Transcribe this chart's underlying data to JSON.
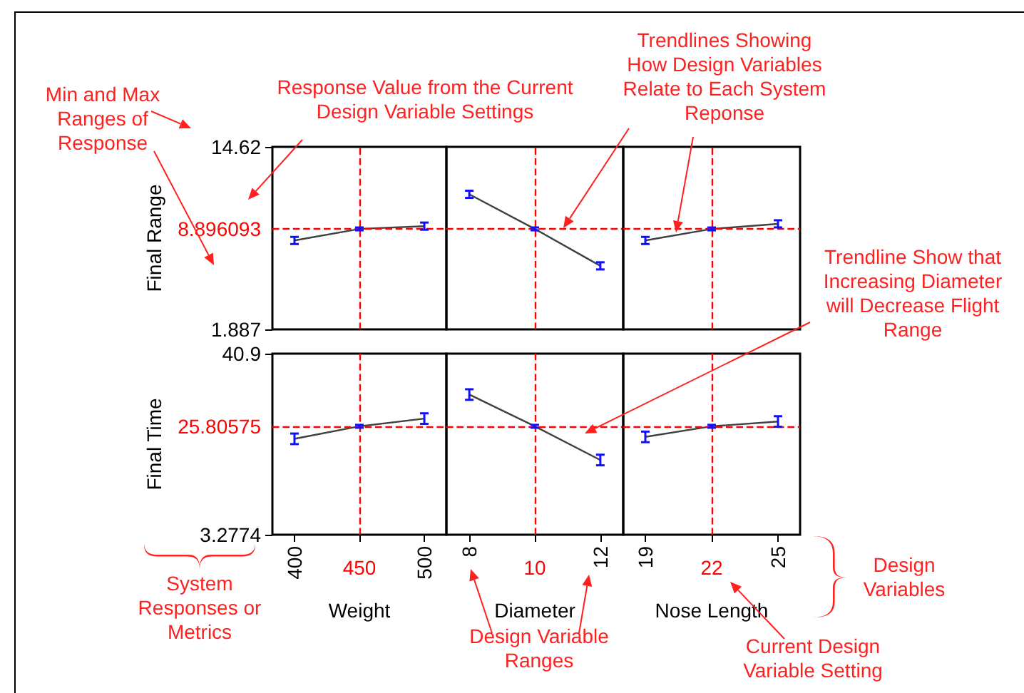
{
  "chart_data": [
    {
      "type": "line",
      "ylabel": "Final Range",
      "x": [
        400,
        450,
        500
      ],
      "values": [
        8.09,
        8.896093,
        9.09
      ],
      "errors": [
        0.25,
        0.1,
        0.25
      ],
      "color": "#404040",
      "marker": "none",
      "xlim": [
        383,
        517
      ],
      "xticks": [
        400,
        {
          "value": 450,
          "label": null
        },
        500
      ],
      "ylim": [
        1.887,
        14.62
      ],
      "yticks": [
        14.62,
        1.887
      ],
      "tick_labels": "y",
      "ref_lines": [
        {
          "axis": "x",
          "value": 450,
          "label": null,
          "color": "#ff0000",
          "line_style": "dashed"
        },
        {
          "axis": "y",
          "value": 8.896093,
          "label": "8.896093",
          "color": "#ff0000",
          "line_style": "dashed"
        }
      ],
      "annotations": [
        "Min and Max\nRanges of\nResponse",
        "Response Value from the Current\nDesign Variable Settings",
        "System\nResponses or\nMetrics"
      ]
    },
    {
      "type": "line",
      "x": [
        8,
        10,
        12
      ],
      "values": [
        11.31,
        8.896093,
        6.32
      ],
      "errors": [
        0.25,
        0.1,
        0.25
      ],
      "color": "#404040",
      "marker": "none",
      "xlim": [
        7.3,
        12.7
      ],
      "xticks": [
        8,
        {
          "value": 10,
          "label": null
        },
        12
      ],
      "ylim": [
        1.887,
        14.62
      ],
      "yticks": [
        14.62,
        1.887
      ],
      "tick_labels": false,
      "ref_lines": [
        {
          "axis": "x",
          "value": 10,
          "label": null,
          "color": "#ff0000",
          "line_style": "dashed"
        },
        {
          "axis": "y",
          "value": 8.896093,
          "label": null,
          "color": "#ff0000",
          "line_style": "dashed"
        }
      ],
      "annotations": [
        "Trendlines Showing\nHow Design Variables\nRelate to Each System\nReponse"
      ]
    },
    {
      "type": "line",
      "x": [
        19,
        22,
        25
      ],
      "values": [
        8.09,
        8.896093,
        9.25
      ],
      "errors": [
        0.25,
        0.1,
        0.25
      ],
      "color": "#404040",
      "marker": "none",
      "xlim": [
        18,
        26
      ],
      "xticks": [
        19,
        {
          "value": 22,
          "label": null
        },
        25
      ],
      "ylim": [
        1.887,
        14.62
      ],
      "yticks": [
        14.62,
        1.887
      ],
      "tick_labels": false,
      "ref_lines": [
        {
          "axis": "x",
          "value": 22,
          "label": null,
          "color": "#ff0000",
          "line_style": "dashed"
        },
        {
          "axis": "y",
          "value": 8.896093,
          "label": null,
          "color": "#ff0000",
          "line_style": "dashed"
        }
      ]
    },
    {
      "type": "line",
      "xlabel": "Weight",
      "ylabel": "Final Time",
      "x": [
        400,
        450,
        500
      ],
      "values": [
        23.2,
        25.80575,
        27.4
      ],
      "errors": [
        1.1,
        0.3,
        1.1
      ],
      "color": "#404040",
      "marker": "none",
      "xlim": [
        383,
        517
      ],
      "xticks": [
        400,
        {
          "value": 450,
          "label": null
        },
        500
      ],
      "ylim": [
        3.2774,
        40.9
      ],
      "yticks": [
        40.9,
        3.2774
      ],
      "ref_lines": [
        {
          "axis": "x",
          "value": 450,
          "label": "450",
          "color": "#ff0000",
          "line_style": "dashed"
        },
        {
          "axis": "y",
          "value": 25.80575,
          "label": "25.80575",
          "color": "#ff0000",
          "line_style": "dashed"
        }
      ]
    },
    {
      "type": "line",
      "xlabel": "Diameter",
      "x": [
        8,
        10,
        12
      ],
      "values": [
        32.4,
        25.80575,
        18.8
      ],
      "errors": [
        1.1,
        0.3,
        1.1
      ],
      "color": "#404040",
      "marker": "none",
      "xlim": [
        7.3,
        12.7
      ],
      "xticks": [
        8,
        {
          "value": 10,
          "label": null
        },
        12
      ],
      "ylim": [
        3.2774,
        40.9
      ],
      "yticks": [
        40.9,
        3.2774
      ],
      "tick_labels": "x",
      "ref_lines": [
        {
          "axis": "x",
          "value": 10,
          "label": "10",
          "color": "#ff0000",
          "line_style": "dashed"
        },
        {
          "axis": "y",
          "value": 25.80575,
          "label": null,
          "color": "#ff0000",
          "line_style": "dashed"
        }
      ],
      "annotations": [
        "Trendline Show that\nIncreasing Diameter\nwill Decrease Flight\nRange",
        "Design Variable\nRanges"
      ]
    },
    {
      "type": "line",
      "xlabel": "Nose Length",
      "x": [
        19,
        22,
        25
      ],
      "values": [
        23.6,
        25.80575,
        26.8
      ],
      "errors": [
        1.1,
        0.3,
        1.1
      ],
      "color": "#404040",
      "marker": "none",
      "xlim": [
        18,
        26
      ],
      "xticks": [
        19,
        {
          "value": 22,
          "label": null
        },
        25
      ],
      "ylim": [
        3.2774,
        40.9
      ],
      "yticks": [
        40.9,
        3.2774
      ],
      "tick_labels": "x",
      "ref_lines": [
        {
          "axis": "x",
          "value": 22,
          "label": "22",
          "color": "#ff0000",
          "line_style": "dashed"
        },
        {
          "axis": "y",
          "value": 25.80575,
          "label": null,
          "color": "#ff0000",
          "line_style": "dashed"
        }
      ],
      "annotations": [
        "Design\nVariables",
        "Current Design\nVariable Setting"
      ]
    }
  ]
}
